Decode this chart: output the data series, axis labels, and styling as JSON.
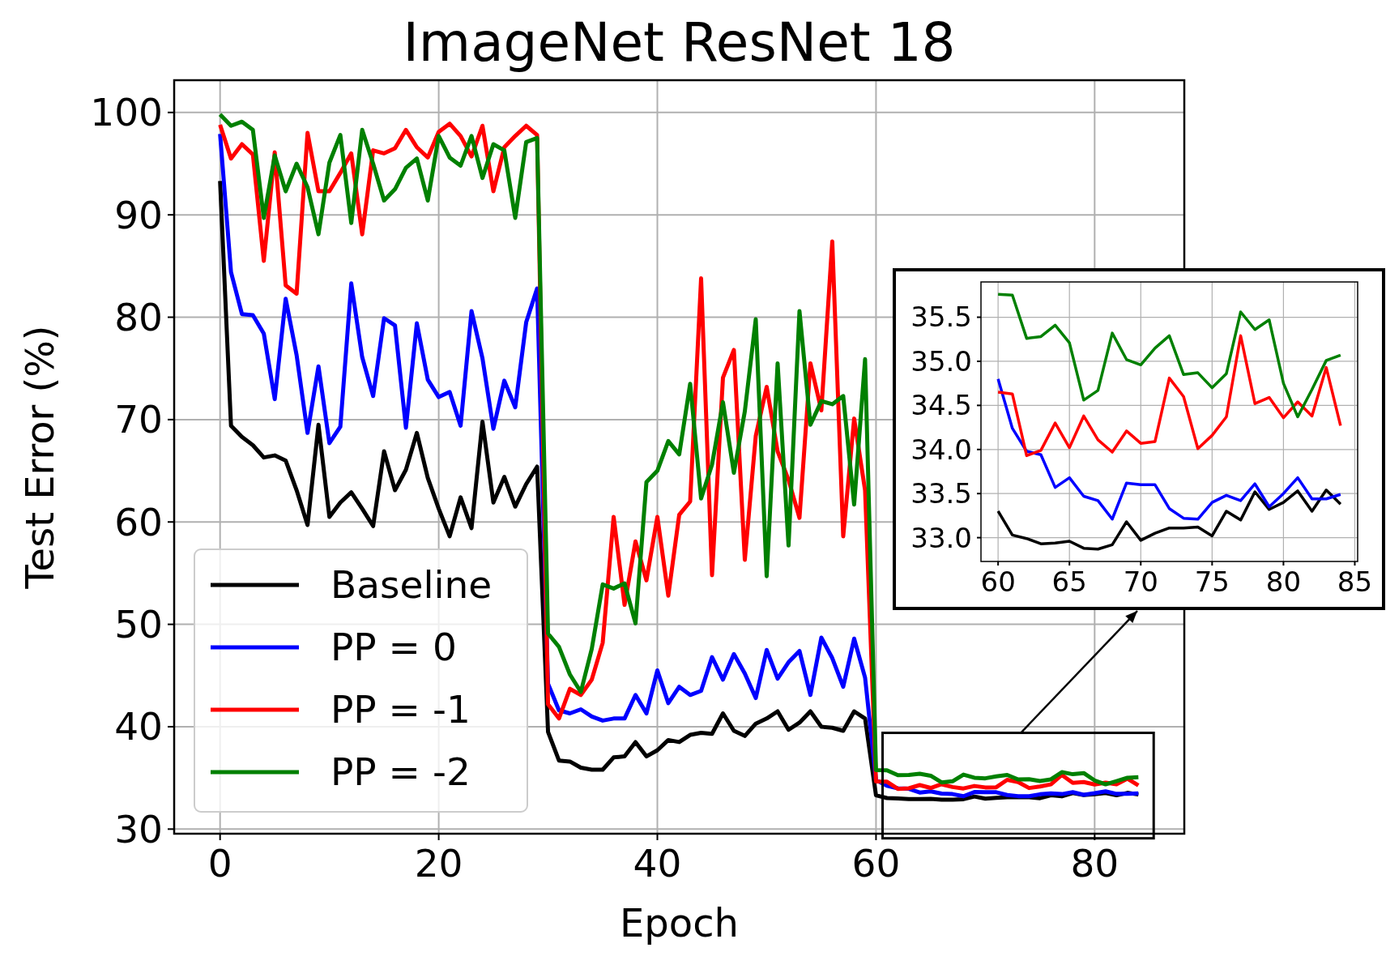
{
  "chart_data": [
    {
      "type": "line",
      "title": "ImageNet ResNet 18",
      "xlabel": "Epoch",
      "ylabel": "Test Error (%)",
      "x": [
        0,
        1,
        2,
        3,
        4,
        5,
        6,
        7,
        8,
        9,
        10,
        11,
        12,
        13,
        14,
        15,
        16,
        17,
        18,
        19,
        20,
        21,
        22,
        23,
        24,
        25,
        26,
        27,
        28,
        29,
        30,
        31,
        32,
        33,
        34,
        35,
        36,
        37,
        38,
        39,
        40,
        41,
        42,
        43,
        44,
        45,
        46,
        47,
        48,
        49,
        50,
        51,
        52,
        53,
        54,
        55,
        56,
        57,
        58,
        59,
        60,
        61,
        62,
        63,
        64,
        65,
        66,
        67,
        68,
        69,
        70,
        71,
        72,
        73,
        74,
        75,
        76,
        77,
        78,
        79,
        80,
        81,
        82,
        83,
        84
      ],
      "xlim": [
        -4.2,
        88.2
      ],
      "xticks": [
        0,
        20,
        40,
        60,
        80
      ],
      "ylim": [
        29.55,
        103.15
      ],
      "yticks": [
        30,
        40,
        50,
        60,
        70,
        80,
        90,
        100
      ],
      "grid": true,
      "legend": "bottom left",
      "line_style": "solid",
      "series": [
        {
          "name": "Baseline",
          "color": "#000000",
          "values": [
            93.3,
            69.4,
            68.3,
            67.5,
            66.3,
            66.5,
            66.0,
            63.1,
            59.7,
            69.5,
            60.5,
            61.9,
            62.9,
            61.3,
            59.6,
            66.9,
            63.1,
            65.1,
            68.7,
            64.3,
            61.3,
            58.6,
            62.4,
            59.4,
            69.8,
            61.9,
            64.4,
            61.5,
            63.7,
            65.4,
            39.5,
            36.7,
            36.6,
            36.0,
            35.8,
            35.8,
            37.0,
            37.1,
            38.5,
            37.1,
            37.7,
            38.7,
            38.5,
            39.2,
            39.4,
            39.3,
            41.3,
            39.6,
            39.1,
            40.3,
            40.8,
            41.5,
            39.7,
            40.4,
            41.5,
            40.0,
            39.9,
            39.6,
            41.5,
            40.8,
            33.3,
            33.03,
            32.99,
            32.93,
            32.94,
            32.96,
            32.88,
            32.87,
            32.92,
            33.18,
            32.97,
            33.05,
            33.11,
            33.11,
            33.12,
            33.02,
            33.3,
            33.2,
            33.52,
            33.32,
            33.4,
            33.53,
            33.3,
            33.54,
            33.38
          ]
        },
        {
          "name": "PP = 0",
          "color": "#0000ff",
          "values": [
            97.9,
            84.4,
            80.3,
            80.2,
            78.4,
            72.0,
            81.8,
            76.3,
            68.7,
            75.2,
            67.7,
            69.3,
            83.3,
            76.1,
            72.3,
            79.9,
            79.2,
            69.2,
            79.4,
            73.9,
            72.2,
            72.7,
            69.4,
            80.6,
            76.0,
            69.1,
            73.8,
            71.2,
            79.5,
            82.8,
            44.2,
            41.6,
            41.3,
            41.7,
            41.0,
            40.6,
            40.8,
            40.8,
            43.1,
            41.3,
            45.5,
            42.3,
            43.9,
            43.1,
            43.5,
            46.8,
            44.6,
            47.1,
            45.2,
            42.8,
            47.5,
            44.7,
            46.3,
            47.4,
            43.1,
            48.7,
            46.7,
            43.9,
            48.6,
            44.8,
            34.8,
            34.24,
            33.98,
            33.94,
            33.57,
            33.68,
            33.47,
            33.42,
            33.21,
            33.62,
            33.6,
            33.6,
            33.33,
            33.22,
            33.21,
            33.4,
            33.48,
            33.42,
            33.61,
            33.35,
            33.5,
            33.68,
            33.44,
            33.44,
            33.49
          ]
        },
        {
          "name": "PP = -1",
          "color": "#ff0000",
          "values": [
            98.8,
            95.5,
            96.9,
            95.9,
            85.5,
            96.1,
            83.1,
            82.3,
            98.0,
            92.3,
            92.3,
            94.1,
            96.0,
            88.1,
            96.3,
            96.0,
            96.5,
            98.3,
            96.6,
            95.6,
            98.1,
            98.9,
            97.7,
            95.7,
            98.7,
            92.3,
            96.6,
            97.7,
            98.7,
            97.8,
            42.2,
            40.8,
            43.7,
            43.1,
            44.6,
            48.2,
            60.5,
            51.9,
            58.1,
            54.3,
            60.5,
            52.8,
            60.7,
            62.0,
            83.8,
            54.8,
            74.1,
            76.8,
            56.3,
            68.4,
            73.2,
            66.9,
            64.1,
            60.4,
            75.5,
            70.9,
            87.4,
            58.6,
            70.1,
            63.1,
            34.65,
            34.63,
            33.93,
            33.99,
            34.3,
            34.02,
            34.38,
            34.11,
            33.97,
            34.21,
            34.07,
            34.09,
            34.81,
            34.6,
            34.01,
            34.16,
            34.37,
            35.29,
            34.52,
            34.59,
            34.36,
            34.54,
            34.38,
            34.93,
            34.27
          ]
        },
        {
          "name": "PP = -2",
          "color": "#008000",
          "values": [
            99.8,
            98.7,
            99.1,
            98.3,
            89.7,
            95.8,
            92.3,
            95.0,
            92.7,
            88.1,
            95.1,
            97.8,
            89.2,
            98.3,
            95.0,
            91.4,
            92.5,
            94.6,
            95.5,
            91.4,
            97.7,
            95.6,
            94.8,
            97.7,
            93.6,
            96.9,
            96.3,
            89.7,
            97.1,
            97.5,
            49.1,
            47.8,
            45.1,
            43.4,
            47.6,
            53.9,
            53.5,
            54.0,
            50.1,
            63.9,
            65.0,
            67.9,
            66.6,
            73.5,
            62.3,
            65.6,
            71.7,
            64.8,
            70.8,
            79.8,
            54.7,
            75.5,
            57.7,
            80.6,
            69.5,
            71.8,
            71.5,
            72.3,
            61.7,
            75.9,
            35.76,
            35.75,
            35.26,
            35.28,
            35.41,
            35.21,
            34.56,
            34.67,
            35.32,
            35.02,
            34.96,
            35.15,
            35.29,
            34.85,
            34.87,
            34.7,
            34.86,
            35.56,
            35.36,
            35.47,
            34.75,
            34.37,
            34.68,
            35.01,
            35.07
          ]
        }
      ]
    },
    {
      "type": "line",
      "x": [
        60,
        61,
        62,
        63,
        64,
        65,
        66,
        67,
        68,
        69,
        70,
        71,
        72,
        73,
        74,
        75,
        76,
        77,
        78,
        79,
        80,
        81,
        82,
        83,
        84
      ],
      "xlim": [
        58.8,
        85.2
      ],
      "xticks": [
        60,
        65,
        70,
        75,
        80,
        85
      ],
      "ylim": [
        32.73,
        35.9
      ],
      "yticks": [
        {
          "value": 33,
          "label": "33.0"
        },
        {
          "value": 33.5,
          "label": "33.5"
        },
        {
          "value": 34,
          "label": "34.0"
        },
        {
          "value": 34.5,
          "label": "34.5"
        },
        {
          "value": 35,
          "label": "35.0"
        },
        {
          "value": 35.5,
          "label": "35.5"
        }
      ],
      "grid": true,
      "line_style": "solid",
      "series": [
        {
          "color": "#000000",
          "values": [
            33.3,
            33.03,
            32.99,
            32.93,
            32.94,
            32.96,
            32.88,
            32.87,
            32.92,
            33.18,
            32.97,
            33.05,
            33.11,
            33.11,
            33.12,
            33.02,
            33.3,
            33.2,
            33.52,
            33.32,
            33.4,
            33.53,
            33.3,
            33.54,
            33.38
          ]
        },
        {
          "color": "#0000ff",
          "values": [
            34.8,
            34.24,
            33.98,
            33.94,
            33.57,
            33.68,
            33.47,
            33.42,
            33.21,
            33.62,
            33.6,
            33.6,
            33.33,
            33.22,
            33.21,
            33.4,
            33.48,
            33.42,
            33.61,
            33.35,
            33.5,
            33.68,
            33.44,
            33.44,
            33.49
          ]
        },
        {
          "color": "#ff0000",
          "values": [
            34.65,
            34.63,
            33.93,
            33.99,
            34.3,
            34.02,
            34.38,
            34.11,
            33.97,
            34.21,
            34.07,
            34.09,
            34.81,
            34.6,
            34.01,
            34.16,
            34.37,
            35.29,
            34.52,
            34.59,
            34.36,
            34.54,
            34.38,
            34.93,
            34.27
          ]
        },
        {
          "color": "#008000",
          "values": [
            35.76,
            35.75,
            35.26,
            35.28,
            35.41,
            35.21,
            34.56,
            34.67,
            35.32,
            35.02,
            34.96,
            35.15,
            35.29,
            34.85,
            34.87,
            34.7,
            34.86,
            35.56,
            35.36,
            35.47,
            34.75,
            34.37,
            34.68,
            35.01,
            35.07
          ]
        }
      ]
    }
  ]
}
